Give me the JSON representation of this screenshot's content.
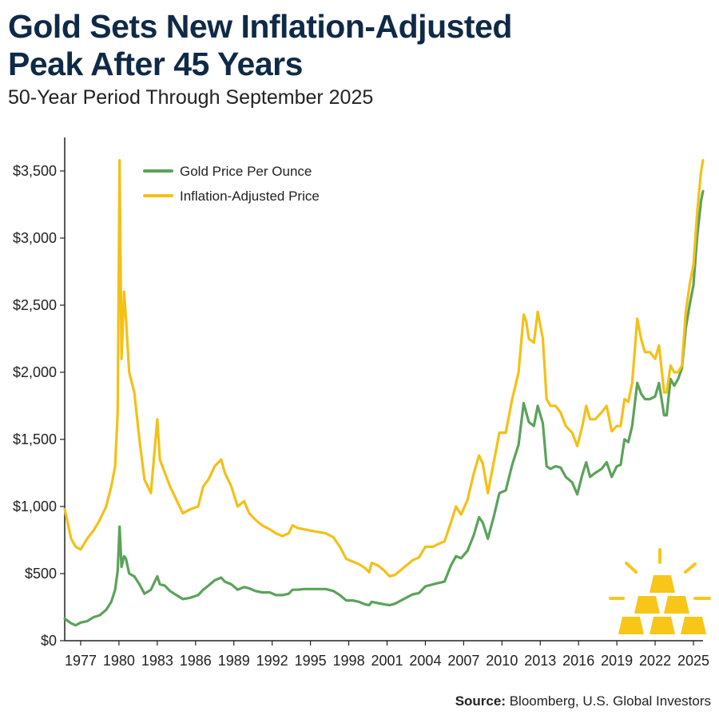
{
  "header": {
    "title_line1": "Gold Sets New Inflation-Adjusted",
    "title_line2": "Peak After 45 Years",
    "subtitle": "50-Year Period Through September 2025"
  },
  "footer": {
    "source_label": "Source:",
    "source_text": "Bloomberg, U.S. Global Investors"
  },
  "colors": {
    "gold_price": "#5ba35a",
    "inflation_adjusted": "#f5c016",
    "axis": "#222222",
    "icon": "#f7c619"
  },
  "icon": "gold-bars-icon",
  "chart_data": {
    "type": "line",
    "title": "Gold Sets New Inflation-Adjusted Peak After 45 Years",
    "subtitle": "50-Year Period Through September 2025",
    "xlabel": "",
    "ylabel": "",
    "xlim": [
      1975.75,
      2025.75
    ],
    "ylim": [
      0,
      3750
    ],
    "grid": false,
    "legend_position": "top-left",
    "x_ticks": [
      1977,
      1980,
      1983,
      1986,
      1989,
      1992,
      1995,
      1998,
      2001,
      2004,
      2007,
      2010,
      2013,
      2016,
      2019,
      2022,
      2025
    ],
    "x_tick_labels": [
      "1977",
      "1980",
      "1983",
      "1986",
      "1989",
      "1992",
      "1995",
      "1998",
      "2001",
      "2004",
      "2007",
      "2010",
      "2013",
      "2016",
      "2019",
      "2022",
      "2025"
    ],
    "y_ticks": [
      0,
      500,
      1000,
      1500,
      2000,
      2500,
      3000,
      3500
    ],
    "y_tick_labels": [
      "$0",
      "$500",
      "$1,000",
      "$1,500",
      "$2,000",
      "$2,500",
      "$3,000",
      "$3,500"
    ],
    "series": [
      {
        "name": "Gold Price Per Ounce",
        "color": "#5ba35a",
        "x": [
          1975.75,
          1976.25,
          1976.6,
          1977.0,
          1977.5,
          1978.0,
          1978.5,
          1979.0,
          1979.4,
          1979.7,
          1979.9,
          1980.05,
          1980.2,
          1980.4,
          1980.55,
          1980.8,
          1981.2,
          1981.6,
          1982.0,
          1982.5,
          1983.0,
          1983.2,
          1983.6,
          1984.0,
          1984.5,
          1985.0,
          1985.6,
          1986.2,
          1986.6,
          1987.0,
          1987.5,
          1988.0,
          1988.3,
          1988.8,
          1989.3,
          1989.8,
          1990.2,
          1990.7,
          1991.2,
          1991.8,
          1992.3,
          1992.8,
          1993.3,
          1993.6,
          1994.0,
          1994.5,
          1995.0,
          1995.6,
          1996.2,
          1996.8,
          1997.3,
          1997.8,
          1998.3,
          1998.8,
          1999.3,
          1999.6,
          1999.8,
          2000.3,
          2000.8,
          2001.2,
          2001.6,
          2002.0,
          2002.5,
          2003.0,
          2003.5,
          2004.0,
          2004.6,
          2005.0,
          2005.5,
          2006.0,
          2006.4,
          2006.8,
          2007.3,
          2007.8,
          2008.2,
          2008.5,
          2008.9,
          2009.4,
          2009.8,
          2010.3,
          2010.8,
          2011.3,
          2011.7,
          2011.9,
          2012.1,
          2012.5,
          2012.8,
          2013.2,
          2013.5,
          2013.8,
          2014.2,
          2014.6,
          2015.0,
          2015.5,
          2015.9,
          2016.3,
          2016.6,
          2016.9,
          2017.3,
          2017.8,
          2018.2,
          2018.6,
          2019.0,
          2019.3,
          2019.6,
          2019.9,
          2020.2,
          2020.6,
          2020.9,
          2021.2,
          2021.6,
          2022.0,
          2022.3,
          2022.7,
          2022.9,
          2023.2,
          2023.5,
          2023.8,
          2024.1,
          2024.4,
          2024.7,
          2025.0,
          2025.3,
          2025.6,
          2025.75
        ],
        "values": [
          165,
          130,
          115,
          135,
          145,
          175,
          190,
          230,
          290,
          380,
          520,
          850,
          550,
          630,
          610,
          500,
          480,
          420,
          350,
          380,
          480,
          420,
          410,
          370,
          340,
          310,
          320,
          340,
          380,
          410,
          450,
          470,
          440,
          420,
          380,
          400,
          390,
          370,
          360,
          360,
          340,
          340,
          350,
          380,
          380,
          385,
          385,
          385,
          385,
          370,
          340,
          300,
          300,
          290,
          270,
          265,
          290,
          280,
          270,
          265,
          275,
          295,
          320,
          345,
          355,
          405,
          420,
          430,
          440,
          560,
          630,
          615,
          670,
          790,
          920,
          880,
          760,
          940,
          1100,
          1120,
          1310,
          1460,
          1770,
          1700,
          1630,
          1600,
          1750,
          1620,
          1300,
          1280,
          1300,
          1290,
          1220,
          1180,
          1090,
          1240,
          1330,
          1220,
          1250,
          1280,
          1330,
          1220,
          1300,
          1310,
          1500,
          1480,
          1600,
          1920,
          1840,
          1800,
          1800,
          1820,
          1920,
          1680,
          1680,
          1950,
          1900,
          1950,
          2030,
          2330,
          2500,
          2650,
          3020,
          3280,
          3350
        ]
      },
      {
        "name": "Inflation-Adjusted Price",
        "color": "#f5c016",
        "x": [
          1975.75,
          1976.25,
          1976.6,
          1977.0,
          1977.5,
          1978.0,
          1978.5,
          1979.0,
          1979.4,
          1979.7,
          1979.9,
          1980.05,
          1980.2,
          1980.4,
          1980.55,
          1980.8,
          1981.2,
          1981.6,
          1982.0,
          1982.5,
          1983.0,
          1983.2,
          1983.6,
          1984.0,
          1984.5,
          1985.0,
          1985.6,
          1986.2,
          1986.6,
          1987.0,
          1987.5,
          1988.0,
          1988.3,
          1988.8,
          1989.3,
          1989.8,
          1990.2,
          1990.7,
          1991.2,
          1991.8,
          1992.3,
          1992.8,
          1993.3,
          1993.6,
          1994.0,
          1994.5,
          1995.0,
          1995.6,
          1996.2,
          1996.8,
          1997.3,
          1997.8,
          1998.3,
          1998.8,
          1999.3,
          1999.6,
          1999.8,
          2000.3,
          2000.8,
          2001.2,
          2001.6,
          2002.0,
          2002.5,
          2003.0,
          2003.5,
          2004.0,
          2004.6,
          2005.0,
          2005.5,
          2006.0,
          2006.4,
          2006.8,
          2007.3,
          2007.8,
          2008.2,
          2008.5,
          2008.9,
          2009.4,
          2009.8,
          2010.3,
          2010.8,
          2011.3,
          2011.7,
          2011.9,
          2012.1,
          2012.5,
          2012.8,
          2013.2,
          2013.5,
          2013.8,
          2014.2,
          2014.6,
          2015.0,
          2015.5,
          2015.9,
          2016.3,
          2016.6,
          2016.9,
          2017.3,
          2017.8,
          2018.2,
          2018.6,
          2019.0,
          2019.3,
          2019.6,
          2019.9,
          2020.2,
          2020.6,
          2020.9,
          2021.2,
          2021.6,
          2022.0,
          2022.3,
          2022.7,
          2022.9,
          2023.2,
          2023.5,
          2023.8,
          2024.1,
          2024.4,
          2024.7,
          2025.0,
          2025.3,
          2025.6,
          2025.75
        ],
        "values": [
          980,
          760,
          700,
          680,
          760,
          820,
          900,
          1000,
          1150,
          1300,
          1700,
          3580,
          2100,
          2600,
          2400,
          2000,
          1850,
          1500,
          1200,
          1100,
          1650,
          1350,
          1250,
          1150,
          1050,
          950,
          980,
          1000,
          1150,
          1200,
          1300,
          1350,
          1250,
          1150,
          1000,
          1040,
          950,
          900,
          860,
          830,
          800,
          780,
          800,
          860,
          840,
          830,
          820,
          810,
          800,
          770,
          700,
          610,
          590,
          570,
          540,
          510,
          580,
          560,
          520,
          480,
          490,
          520,
          560,
          600,
          620,
          700,
          700,
          720,
          740,
          880,
          1000,
          940,
          1050,
          1250,
          1380,
          1320,
          1100,
          1350,
          1550,
          1550,
          1800,
          2000,
          2430,
          2380,
          2250,
          2220,
          2450,
          2250,
          1800,
          1750,
          1750,
          1700,
          1600,
          1550,
          1450,
          1600,
          1750,
          1650,
          1650,
          1700,
          1750,
          1560,
          1600,
          1600,
          1800,
          1780,
          1920,
          2400,
          2250,
          2150,
          2150,
          2100,
          2200,
          1850,
          1850,
          2050,
          2000,
          2000,
          2050,
          2450,
          2650,
          2800,
          3200,
          3500,
          3580
        ]
      }
    ]
  }
}
